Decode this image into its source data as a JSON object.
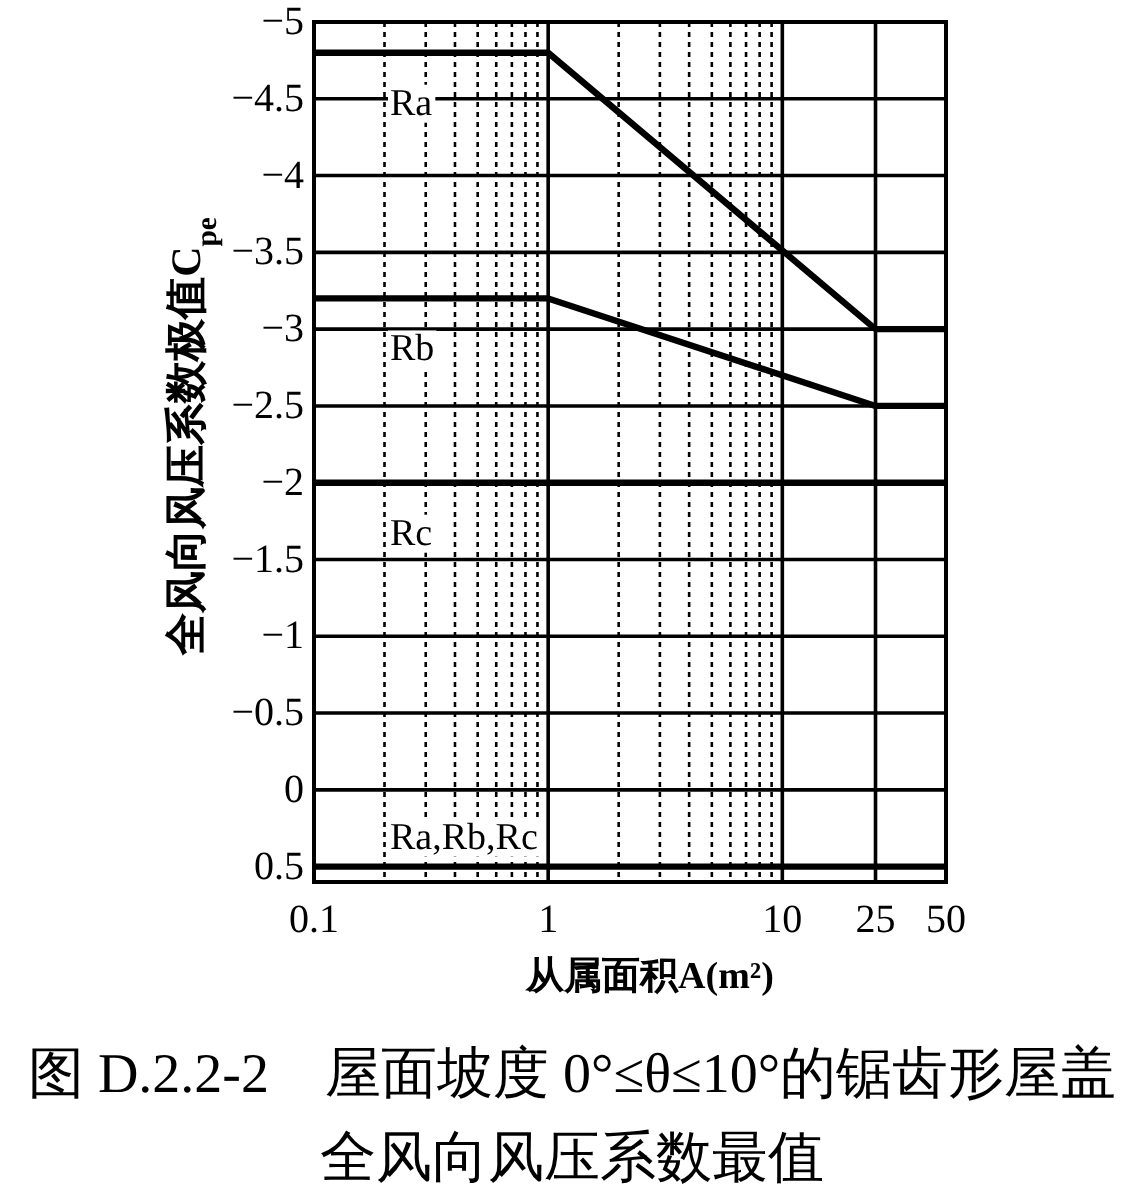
{
  "chart_data": {
    "type": "line",
    "title": "图 D.2.2-2　屋面坡度 0°≤θ≤10°的锯齿形屋盖全风向风压系数最值",
    "xlabel": "从属面积A(m²)",
    "ylabel": "全风向风压系数极值C$_{pe}$",
    "log": "x",
    "grid": true,
    "xlim": [
      0.1,
      50
    ],
    "xticks": [
      0.1,
      {
        "value": 0.2,
        "label": null
      },
      {
        "value": 0.3,
        "label": null
      },
      {
        "value": 0.4,
        "label": null
      },
      {
        "value": 0.5,
        "label": null
      },
      {
        "value": 0.6,
        "label": null
      },
      {
        "value": 0.7,
        "label": null
      },
      {
        "value": 0.8,
        "label": null
      },
      {
        "value": 0.9,
        "label": null
      },
      1,
      {
        "value": 2,
        "label": null
      },
      {
        "value": 3,
        "label": null
      },
      {
        "value": 4,
        "label": null
      },
      {
        "value": 5,
        "label": null
      },
      {
        "value": 6,
        "label": null
      },
      {
        "value": 7,
        "label": null
      },
      {
        "value": 8,
        "label": null
      },
      {
        "value": 9,
        "label": null
      },
      10,
      25,
      50
    ],
    "ylim": [
      0.6,
      -5
    ],
    "yticks": [
      -5,
      -4.5,
      -4,
      -3.5,
      -3,
      -2.5,
      -2,
      -1.5,
      -1,
      -0.5,
      0,
      0.5
    ],
    "series": [
      {
        "name": "Ra",
        "color": "#000000",
        "x": [
          0.1,
          1,
          25,
          50
        ],
        "values": [
          -4.8,
          -4.8,
          -3,
          -3
        ]
      },
      {
        "name": "Rb",
        "color": "#000000",
        "x": [
          0.1,
          1,
          25,
          50
        ],
        "values": [
          -3.2,
          -3.2,
          -2.5,
          -2.5
        ]
      },
      {
        "name": "Rc",
        "color": "#000000",
        "x": [
          0.1,
          50
        ],
        "values": [
          -2,
          -2
        ]
      },
      {
        "name": "Ra,Rb,Rc",
        "color": "#000000",
        "x": [
          0.1,
          50
        ],
        "values": [
          0.5,
          0.5
        ]
      }
    ]
  }
}
